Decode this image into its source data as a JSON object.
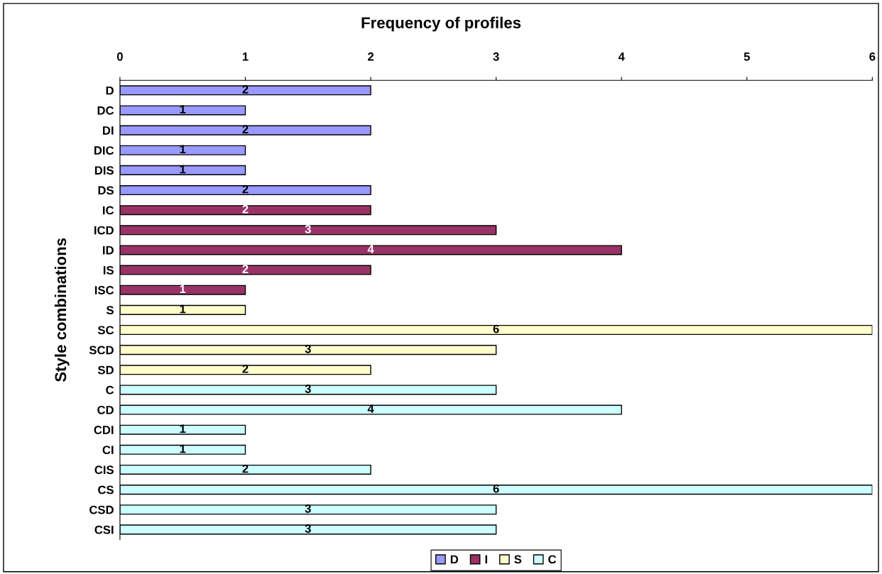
{
  "chart_data": {
    "type": "bar",
    "orientation": "horizontal",
    "title": "Frequency of profiles",
    "ylabel": "Style combinations",
    "categories": [
      "D",
      "DC",
      "DI",
      "DIC",
      "DIS",
      "DS",
      "IC",
      "ICD",
      "ID",
      "IS",
      "ISC",
      "S",
      "SC",
      "SCD",
      "SD",
      "C",
      "CD",
      "CDI",
      "CI",
      "CIS",
      "CS",
      "CSD",
      "CSI"
    ],
    "series": [
      {
        "name": "D",
        "color": "#9999ff",
        "values": [
          2,
          1,
          2,
          1,
          1,
          2,
          null,
          null,
          null,
          null,
          null,
          null,
          null,
          null,
          null,
          null,
          null,
          null,
          null,
          null,
          null,
          null,
          null
        ]
      },
      {
        "name": "I",
        "color": "#993366",
        "values": [
          null,
          null,
          null,
          null,
          null,
          null,
          2,
          3,
          4,
          2,
          1,
          null,
          null,
          null,
          null,
          null,
          null,
          null,
          null,
          null,
          null,
          null,
          null
        ]
      },
      {
        "name": "S",
        "color": "#ffffcc",
        "values": [
          null,
          null,
          null,
          null,
          null,
          null,
          null,
          null,
          null,
          null,
          null,
          1,
          6,
          3,
          2,
          null,
          null,
          null,
          null,
          null,
          null,
          null,
          null
        ]
      },
      {
        "name": "C",
        "color": "#ccffff",
        "values": [
          null,
          null,
          null,
          null,
          null,
          null,
          null,
          null,
          null,
          null,
          null,
          null,
          null,
          null,
          null,
          3,
          4,
          1,
          1,
          2,
          6,
          3,
          3
        ]
      }
    ],
    "xlim": [
      0,
      6
    ],
    "xticks": [
      0,
      1,
      2,
      3,
      4,
      5,
      6
    ],
    "data_labels": true,
    "grid": false,
    "legend": "bottom"
  }
}
